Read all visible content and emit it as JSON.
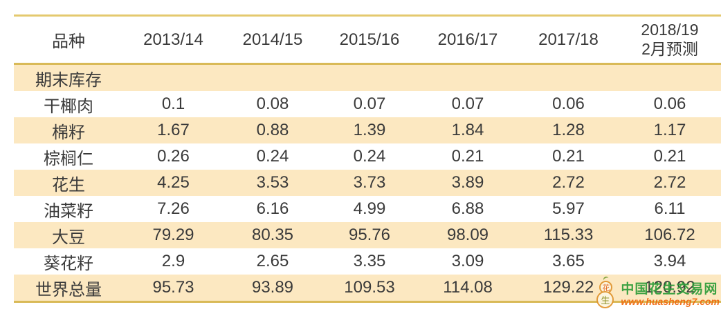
{
  "chart_data": {
    "type": "table",
    "row_header_label": "品种",
    "section_label": "期末库存",
    "columns": [
      {
        "label": "2013/14"
      },
      {
        "label": "2014/15"
      },
      {
        "label": "2015/16"
      },
      {
        "label": "2016/17"
      },
      {
        "label": "2017/18"
      },
      {
        "label": "2018/19",
        "sub": "2月预测"
      }
    ],
    "rows": [
      {
        "label": "干椰肉",
        "values": [
          "0.1",
          "0.08",
          "0.07",
          "0.07",
          "0.06",
          "0.06"
        ]
      },
      {
        "label": "棉籽",
        "values": [
          "1.67",
          "0.88",
          "1.39",
          "1.84",
          "1.28",
          "1.17"
        ]
      },
      {
        "label": "棕榈仁",
        "values": [
          "0.26",
          "0.24",
          "0.24",
          "0.21",
          "0.21",
          "0.21"
        ]
      },
      {
        "label": "花生",
        "values": [
          "4.25",
          "3.53",
          "3.73",
          "3.89",
          "2.72",
          "2.72"
        ]
      },
      {
        "label": "油菜籽",
        "values": [
          "7.26",
          "6.16",
          "4.99",
          "6.88",
          "5.97",
          "6.11"
        ]
      },
      {
        "label": "大豆",
        "values": [
          "79.29",
          "80.35",
          "95.76",
          "98.09",
          "115.33",
          "106.72"
        ]
      },
      {
        "label": "葵花籽",
        "values": [
          "2.9",
          "2.65",
          "3.35",
          "3.09",
          "3.65",
          "3.94"
        ]
      },
      {
        "label": "世界总量",
        "values": [
          "95.73",
          "93.89",
          "109.53",
          "114.08",
          "129.22",
          "120.92"
        ]
      }
    ]
  },
  "watermark": {
    "site_name": "中国花生交易网",
    "site_url": "www.huasheng7.com",
    "logo_top_char": "花",
    "logo_bottom_char": "生"
  },
  "colors": {
    "row_stripe": "#fce8c1",
    "border_gold": "#ddc269",
    "text": "#3a3a3a",
    "watermark_green": "#2f9d3a",
    "watermark_orange": "#f1680d"
  }
}
